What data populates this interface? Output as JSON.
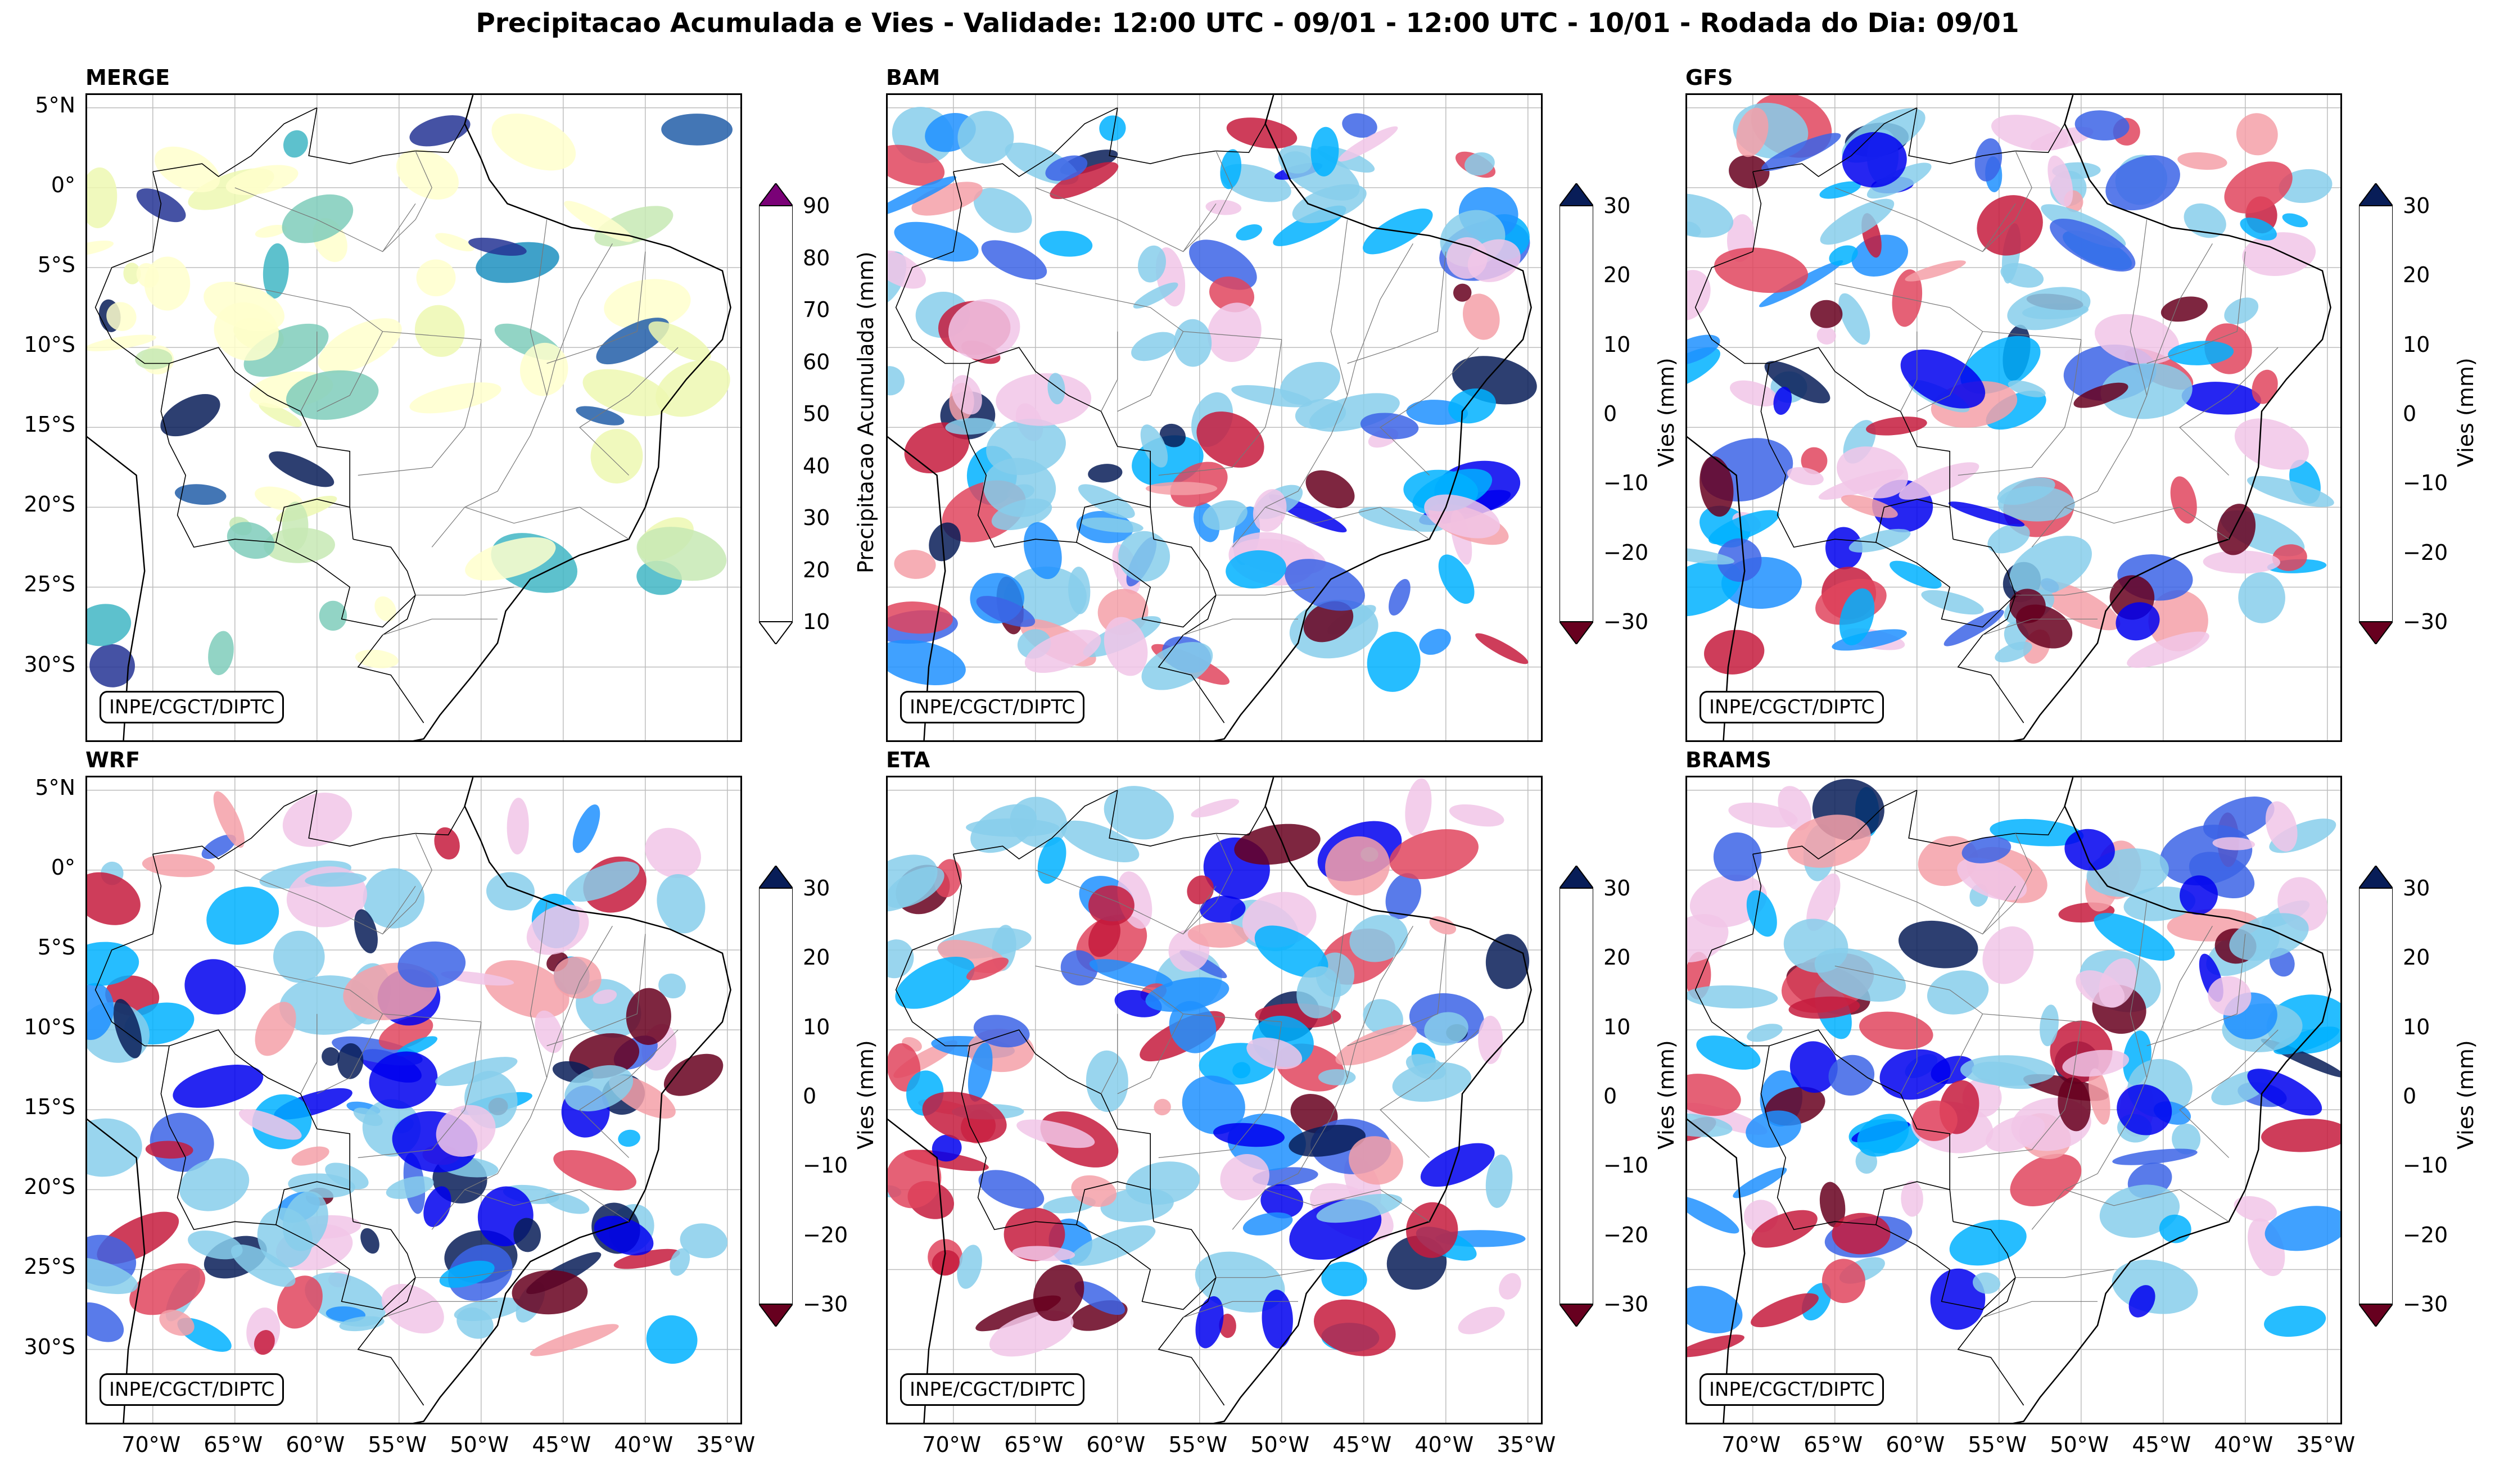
{
  "title": "Precipitacao Acumulada e Vies - Validade: 12:00 UTC - 09/01 - 12:00 UTC - 10/01 - Rodada do Dia: 09/01",
  "credit": "INPE/CGCT/DIPTC",
  "lat_ticks": [
    "5°N",
    "0°",
    "5°S",
    "10°S",
    "15°S",
    "20°S",
    "25°S",
    "30°S"
  ],
  "lon_ticks": [
    "70°W",
    "65°W",
    "60°W",
    "55°W",
    "50°W",
    "45°W",
    "40°W",
    "35°W"
  ],
  "panels": [
    {
      "name": "MERGE",
      "type": "precip"
    },
    {
      "name": "BAM",
      "type": "bias"
    },
    {
      "name": "GFS",
      "type": "bias"
    },
    {
      "name": "WRF",
      "type": "bias"
    },
    {
      "name": "ETA",
      "type": "bias"
    },
    {
      "name": "BRAMS",
      "type": "bias"
    }
  ],
  "precip_colorbar": {
    "label": "Precipitacao Acumulada (mm)",
    "ticks": [
      "90",
      "80",
      "70",
      "60",
      "50",
      "40",
      "30",
      "20",
      "10"
    ],
    "colors": [
      "#ffffcc",
      "#edf8b1",
      "#c7e9b4",
      "#7fcdbb",
      "#41b6c4",
      "#1d91c0",
      "#225ea8",
      "#253494",
      "#081d58"
    ],
    "over_color": "#7a0177"
  },
  "bias_colorbar": {
    "label": "Vies (mm)",
    "ticks": [
      "30",
      "20",
      "10",
      "0",
      "−10",
      "−20",
      "−30"
    ],
    "colors": [
      "#67001f",
      "#c51b3d",
      "#e0455e",
      "#f4a0a8",
      "#f1c6e8",
      "#ffffff",
      "#ffffff",
      "#87ceeb",
      "#00b2ff",
      "#1e90ff",
      "#3c64e6",
      "#0000ee"
    ],
    "under_color": "#67001f",
    "over_color": "#081d58"
  }
}
